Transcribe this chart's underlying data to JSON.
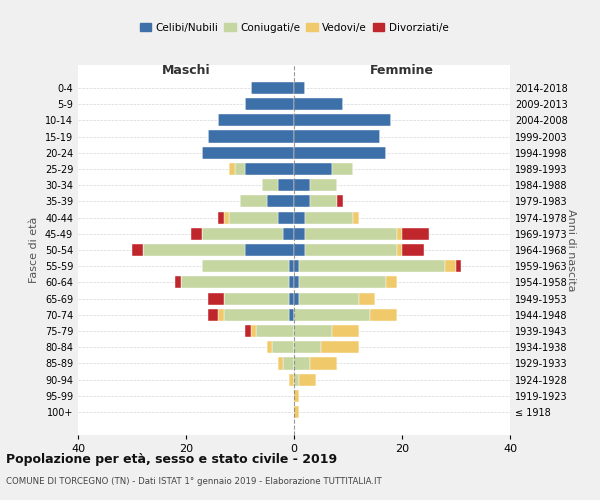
{
  "age_groups": [
    "100+",
    "95-99",
    "90-94",
    "85-89",
    "80-84",
    "75-79",
    "70-74",
    "65-69",
    "60-64",
    "55-59",
    "50-54",
    "45-49",
    "40-44",
    "35-39",
    "30-34",
    "25-29",
    "20-24",
    "15-19",
    "10-14",
    "5-9",
    "0-4"
  ],
  "birth_years": [
    "≤ 1918",
    "1919-1923",
    "1924-1928",
    "1929-1933",
    "1934-1938",
    "1939-1943",
    "1944-1948",
    "1949-1953",
    "1954-1958",
    "1959-1963",
    "1964-1968",
    "1969-1973",
    "1974-1978",
    "1979-1983",
    "1984-1988",
    "1989-1993",
    "1994-1998",
    "1999-2003",
    "2004-2008",
    "2009-2013",
    "2014-2018"
  ],
  "maschi": {
    "celibe": [
      0,
      0,
      0,
      0,
      0,
      0,
      1,
      1,
      1,
      1,
      9,
      2,
      3,
      5,
      3,
      9,
      17,
      16,
      14,
      9,
      8
    ],
    "coniugato": [
      0,
      0,
      0,
      2,
      4,
      7,
      12,
      12,
      20,
      16,
      19,
      15,
      9,
      5,
      3,
      2,
      0,
      0,
      0,
      0,
      0
    ],
    "vedovo": [
      0,
      0,
      1,
      1,
      1,
      1,
      1,
      0,
      0,
      0,
      0,
      0,
      1,
      0,
      0,
      1,
      0,
      0,
      0,
      0,
      0
    ],
    "divorziato": [
      0,
      0,
      0,
      0,
      0,
      1,
      2,
      3,
      1,
      0,
      2,
      2,
      1,
      0,
      0,
      0,
      0,
      0,
      0,
      0,
      0
    ]
  },
  "femmine": {
    "nubile": [
      0,
      0,
      0,
      0,
      0,
      0,
      0,
      1,
      1,
      1,
      2,
      2,
      2,
      3,
      3,
      7,
      17,
      16,
      18,
      9,
      2
    ],
    "coniugata": [
      0,
      0,
      1,
      3,
      5,
      7,
      14,
      11,
      16,
      27,
      17,
      17,
      9,
      5,
      5,
      4,
      0,
      0,
      0,
      0,
      0
    ],
    "vedova": [
      1,
      1,
      3,
      5,
      7,
      5,
      5,
      3,
      2,
      2,
      1,
      1,
      1,
      0,
      0,
      0,
      0,
      0,
      0,
      0,
      0
    ],
    "divorziata": [
      0,
      0,
      0,
      0,
      0,
      0,
      0,
      0,
      0,
      1,
      4,
      5,
      0,
      1,
      0,
      0,
      0,
      0,
      0,
      0,
      0
    ]
  },
  "colors": {
    "celibe": "#3d6fa8",
    "coniugato": "#c5d6a0",
    "vedovo": "#f0c96a",
    "divorziato": "#c0272d"
  },
  "xlim": 40,
  "title": "Popolazione per età, sesso e stato civile - 2019",
  "subtitle": "COMUNE DI TORCEGNO (TN) - Dati ISTAT 1° gennaio 2019 - Elaborazione TUTTITALIA.IT",
  "ylabel_left": "Fasce di età",
  "ylabel_right": "Anni di nascita",
  "xlabel_maschi": "Maschi",
  "xlabel_femmine": "Femmine",
  "legend_labels": [
    "Celibi/Nubili",
    "Coniugati/e",
    "Vedovi/e",
    "Divorziati/e"
  ],
  "bg_color": "#f0f0f0",
  "plot_bg": "#ffffff"
}
